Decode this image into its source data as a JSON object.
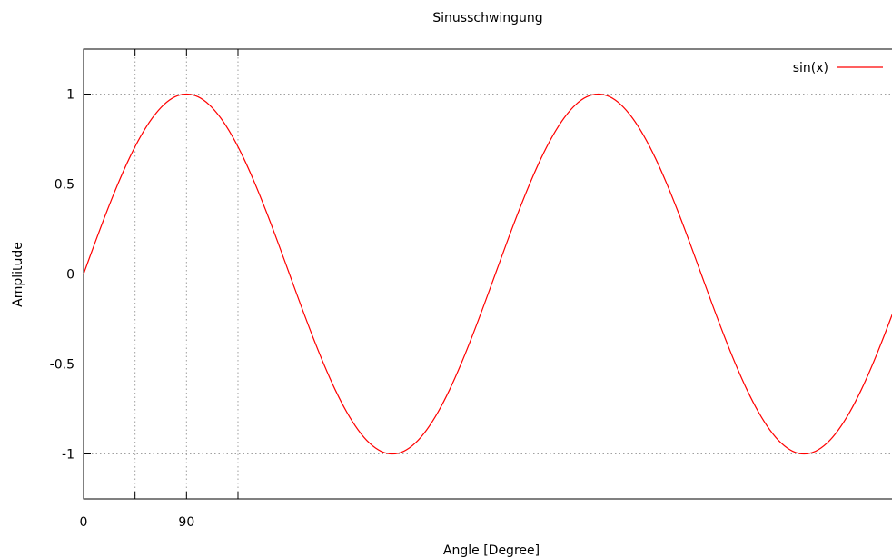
{
  "chart_data": {
    "type": "line",
    "title": "Sinusschwingung",
    "xlabel": "Angle [Degree]",
    "ylabel": "Amplitude",
    "xlim": [
      0,
      710
    ],
    "ylim": [
      -1.25,
      1.25
    ],
    "x_ticks": [
      {
        "value": 0,
        "label": "0"
      },
      {
        "value": 45,
        "label": ""
      },
      {
        "value": 90,
        "label": "90"
      },
      {
        "value": 135,
        "label": ""
      }
    ],
    "y_ticks": [
      {
        "value": 1,
        "label": "1"
      },
      {
        "value": 0.5,
        "label": "0.5"
      },
      {
        "value": 0,
        "label": "0"
      },
      {
        "value": -0.5,
        "label": "-0.5"
      },
      {
        "value": -1,
        "label": "-1"
      }
    ],
    "grid": true,
    "legend_position": "top-right",
    "series": [
      {
        "name": "sin(x)",
        "color": "#ff0000",
        "x": [
          0,
          10,
          20,
          30,
          40,
          50,
          60,
          70,
          80,
          90,
          100,
          110,
          120,
          130,
          140,
          150,
          160,
          170,
          180,
          190,
          200,
          210,
          220,
          230,
          240,
          250,
          260,
          270,
          280,
          290,
          300,
          310,
          320,
          330,
          340,
          350,
          360,
          370,
          380,
          390,
          400,
          410,
          420,
          430,
          440,
          450,
          460,
          470,
          480,
          490,
          500,
          510,
          520,
          530,
          540,
          550,
          560,
          570,
          580,
          590,
          600,
          610,
          620,
          630,
          640,
          650,
          660,
          670,
          680,
          690,
          700,
          710
        ],
        "y": [
          0,
          0.174,
          0.342,
          0.5,
          0.643,
          0.766,
          0.866,
          0.94,
          0.985,
          1,
          0.985,
          0.94,
          0.866,
          0.766,
          0.643,
          0.5,
          0.342,
          0.174,
          0,
          -0.174,
          -0.342,
          -0.5,
          -0.643,
          -0.766,
          -0.866,
          -0.94,
          -0.985,
          -1,
          -0.985,
          -0.94,
          -0.866,
          -0.766,
          -0.643,
          -0.5,
          -0.342,
          -0.174,
          0,
          0.174,
          0.342,
          0.5,
          0.643,
          0.766,
          0.866,
          0.94,
          0.985,
          1,
          0.985,
          0.94,
          0.866,
          0.766,
          0.643,
          0.5,
          0.342,
          0.174,
          0,
          -0.174,
          -0.342,
          -0.5,
          -0.643,
          -0.766,
          -0.866,
          -0.94,
          -0.985,
          -1,
          -0.985,
          -0.94,
          -0.866,
          -0.766,
          -0.643,
          -0.5,
          -0.342,
          -0.174
        ]
      }
    ]
  }
}
